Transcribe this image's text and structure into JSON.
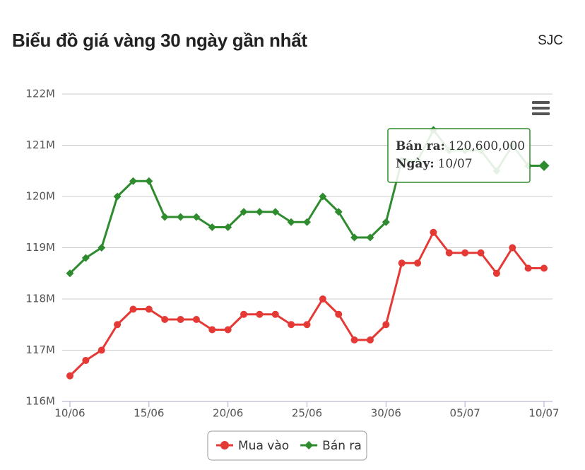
{
  "header": {
    "title": "Biểu đồ giá vàng 30 ngày gần nhất",
    "brand": "SJC"
  },
  "chart_data": {
    "type": "line",
    "categories": [
      "10/06",
      null,
      null,
      null,
      null,
      "15/06",
      null,
      null,
      null,
      null,
      "20/06",
      null,
      null,
      null,
      null,
      "25/06",
      null,
      null,
      null,
      null,
      "30/06",
      null,
      null,
      null,
      null,
      "05/07",
      null,
      null,
      null,
      null,
      "10/07"
    ],
    "series": [
      {
        "name": "Mua vào",
        "color": "#e53935",
        "marker": "circle",
        "values": [
          116500000,
          116800000,
          117000000,
          117500000,
          117800000,
          117800000,
          117600000,
          117600000,
          117600000,
          117400000,
          117400000,
          117700000,
          117700000,
          117700000,
          117500000,
          117500000,
          118000000,
          117700000,
          117200000,
          117200000,
          117500000,
          118700000,
          118700000,
          119300000,
          118900000,
          118900000,
          118900000,
          118500000,
          119000000,
          118600000,
          118600000
        ]
      },
      {
        "name": "Bán ra",
        "color": "#2e8b2e",
        "marker": "diamond",
        "values": [
          118500000,
          118800000,
          119000000,
          120000000,
          120300000,
          120300000,
          119600000,
          119600000,
          119600000,
          119400000,
          119400000,
          119700000,
          119700000,
          119700000,
          119500000,
          119500000,
          120000000,
          119700000,
          119200000,
          119200000,
          119500000,
          120700000,
          120700000,
          121300000,
          120900000,
          120900000,
          120900000,
          120500000,
          121000000,
          120600000,
          120600000
        ]
      }
    ],
    "ylim": [
      116000000,
      122000000
    ],
    "yticks": [
      {
        "value": 116000000,
        "label": "116M"
      },
      {
        "value": 117000000,
        "label": "117M"
      },
      {
        "value": 118000000,
        "label": "118M"
      },
      {
        "value": 119000000,
        "label": "119M"
      },
      {
        "value": 120000000,
        "label": "120M"
      },
      {
        "value": 121000000,
        "label": "121M"
      },
      {
        "value": 122000000,
        "label": "122M"
      }
    ],
    "grid": true,
    "legend": "bottom",
    "tooltip": {
      "series": "Bán ra:",
      "value": "120,600,000",
      "date_label": "Ngày:",
      "date": "10/07",
      "index": 30
    }
  }
}
